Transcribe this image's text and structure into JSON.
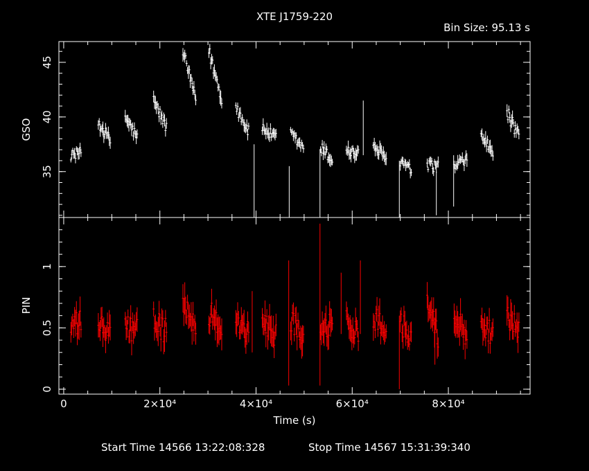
{
  "header": {
    "title": "XTE J1759-220",
    "bin_size": "Bin Size: 95.13 s"
  },
  "footer": {
    "start_time": "Start Time 14566 13:22:08:328",
    "stop_time": "Stop Time 14567 15:31:39:340"
  },
  "colors": {
    "background": "#000000",
    "axes": "#ffffff",
    "gso_series": "#ffffff",
    "pin_series": "#ff0000"
  },
  "chart_data": [
    {
      "type": "scatter",
      "panel": "top",
      "ylabel": "GSO",
      "xlabel": "",
      "xlim": [
        -1000,
        97000
      ],
      "ylim": [
        30.8,
        46.9
      ],
      "y_ticks": [
        35,
        40,
        45
      ],
      "y_tick_labels": [
        "35",
        "40",
        "45"
      ],
      "grid": false,
      "series": [
        {
          "color": "#ffffff",
          "segments": [
            {
              "x0": 1500,
              "x1": 3700,
              "y_start": 36.5,
              "y_end": 36.8,
              "noise": 0.9
            },
            {
              "x0": 7200,
              "x1": 9700,
              "y_start": 39.5,
              "y_end": 37.8,
              "noise": 1.1
            },
            {
              "x0": 12800,
              "x1": 15400,
              "y_start": 40.0,
              "y_end": 38.0,
              "noise": 1.1
            },
            {
              "x0": 18700,
              "x1": 21400,
              "y_start": 41.5,
              "y_end": 39.0,
              "noise": 1.1
            },
            {
              "x0": 24800,
              "x1": 27500,
              "y_start": 46.0,
              "y_end": 41.5,
              "noise": 1.1
            },
            {
              "x0": 30200,
              "x1": 33000,
              "y_start": 46.0,
              "y_end": 41.5,
              "noise": 1.2
            },
            {
              "x0": 35800,
              "x1": 38600,
              "y_start": 41.0,
              "y_end": 38.5,
              "noise": 1.1
            },
            {
              "x0": 41300,
              "x1": 44300,
              "y_start": 39.0,
              "y_end": 38.0,
              "noise": 1.0
            },
            {
              "x0": 47200,
              "x1": 50000,
              "y_start": 38.5,
              "y_end": 37.0,
              "noise": 1.0
            },
            {
              "x0": 53400,
              "x1": 55900,
              "y_start": 37.2,
              "y_end": 36.0,
              "noise": 1.1
            },
            {
              "x0": 58800,
              "x1": 61400,
              "y_start": 37.0,
              "y_end": 36.5,
              "noise": 1.1
            },
            {
              "x0": 64400,
              "x1": 67100,
              "y_start": 37.5,
              "y_end": 36.0,
              "noise": 1.1
            },
            {
              "x0": 70000,
              "x1": 72400,
              "y_start": 36.0,
              "y_end": 35.0,
              "noise": 1.0
            },
            {
              "x0": 75600,
              "x1": 77900,
              "y_start": 35.5,
              "y_end": 35.5,
              "noise": 1.0
            },
            {
              "x0": 81200,
              "x1": 83900,
              "y_start": 35.5,
              "y_end": 36.0,
              "noise": 1.1
            },
            {
              "x0": 86800,
              "x1": 89300,
              "y_start": 38.5,
              "y_end": 36.5,
              "noise": 1.1
            },
            {
              "x0": 92200,
              "x1": 94700,
              "y_start": 40.5,
              "y_end": 38.0,
              "noise": 1.2
            }
          ],
          "spikes": [
            {
              "x": 39600,
              "y_low": 30.8,
              "y_high": 37.5
            },
            {
              "x": 46900,
              "y_low": 30.8,
              "y_high": 35.5
            },
            {
              "x": 53300,
              "y_low": 30.8,
              "y_high": 37.0
            },
            {
              "x": 62300,
              "y_low": 36.5,
              "y_high": 41.5
            },
            {
              "x": 69800,
              "y_low": 30.8,
              "y_high": 36.0
            },
            {
              "x": 77500,
              "y_low": 31.0,
              "y_high": 35.0
            },
            {
              "x": 81100,
              "y_low": 31.8,
              "y_high": 36.5
            }
          ]
        }
      ]
    },
    {
      "type": "scatter",
      "panel": "bottom",
      "ylabel": "PIN",
      "xlabel": "Time (s)",
      "xlim": [
        -1000,
        97000
      ],
      "ylim": [
        -0.04,
        1.4
      ],
      "y_ticks": [
        0,
        0.5,
        1
      ],
      "y_tick_labels": [
        "0",
        "0.5",
        "1"
      ],
      "x_ticks": [
        0,
        20000,
        40000,
        60000,
        80000
      ],
      "x_tick_labels": [
        "0",
        "2×10⁴",
        "4×10⁴",
        "6×10⁴",
        "8×10⁴"
      ],
      "grid": false,
      "series": [
        {
          "color": "#ff0000",
          "segments": [
            {
              "x0": 1500,
              "x1": 3700,
              "y_start": 0.5,
              "y_end": 0.55,
              "noise": 0.2
            },
            {
              "x0": 7200,
              "x1": 9700,
              "y_start": 0.52,
              "y_end": 0.45,
              "noise": 0.2
            },
            {
              "x0": 12800,
              "x1": 15400,
              "y_start": 0.52,
              "y_end": 0.47,
              "noise": 0.2
            },
            {
              "x0": 18700,
              "x1": 21400,
              "y_start": 0.55,
              "y_end": 0.48,
              "noise": 0.22
            },
            {
              "x0": 24800,
              "x1": 27500,
              "y_start": 0.65,
              "y_end": 0.52,
              "noise": 0.22
            },
            {
              "x0": 30200,
              "x1": 33000,
              "y_start": 0.63,
              "y_end": 0.5,
              "noise": 0.22
            },
            {
              "x0": 35800,
              "x1": 38600,
              "y_start": 0.55,
              "y_end": 0.45,
              "noise": 0.2
            },
            {
              "x0": 41300,
              "x1": 44300,
              "y_start": 0.55,
              "y_end": 0.45,
              "noise": 0.22
            },
            {
              "x0": 47200,
              "x1": 50000,
              "y_start": 0.55,
              "y_end": 0.4,
              "noise": 0.22
            },
            {
              "x0": 53400,
              "x1": 55900,
              "y_start": 0.55,
              "y_end": 0.5,
              "noise": 0.2
            },
            {
              "x0": 58800,
              "x1": 61400,
              "y_start": 0.55,
              "y_end": 0.45,
              "noise": 0.2
            },
            {
              "x0": 64400,
              "x1": 67100,
              "y_start": 0.6,
              "y_end": 0.5,
              "noise": 0.22
            },
            {
              "x0": 70000,
              "x1": 72400,
              "y_start": 0.55,
              "y_end": 0.4,
              "noise": 0.2
            },
            {
              "x0": 75600,
              "x1": 77900,
              "y_start": 0.7,
              "y_end": 0.45,
              "noise": 0.22
            },
            {
              "x0": 81200,
              "x1": 83900,
              "y_start": 0.6,
              "y_end": 0.45,
              "noise": 0.22
            },
            {
              "x0": 86800,
              "x1": 89300,
              "y_start": 0.55,
              "y_end": 0.45,
              "noise": 0.2
            },
            {
              "x0": 92200,
              "x1": 94700,
              "y_start": 0.6,
              "y_end": 0.5,
              "noise": 0.22
            }
          ],
          "spikes": [
            {
              "x": 39200,
              "y_low": 0.3,
              "y_high": 0.8
            },
            {
              "x": 46800,
              "y_low": 0.03,
              "y_high": 1.05
            },
            {
              "x": 53300,
              "y_low": 0.03,
              "y_high": 1.35
            },
            {
              "x": 57700,
              "y_low": 0.45,
              "y_high": 0.95
            },
            {
              "x": 61700,
              "y_low": 0.45,
              "y_high": 1.05
            },
            {
              "x": 69800,
              "y_low": 0.0,
              "y_high": 0.6
            },
            {
              "x": 77200,
              "y_low": 0.2,
              "y_high": 0.55
            }
          ]
        }
      ]
    }
  ]
}
